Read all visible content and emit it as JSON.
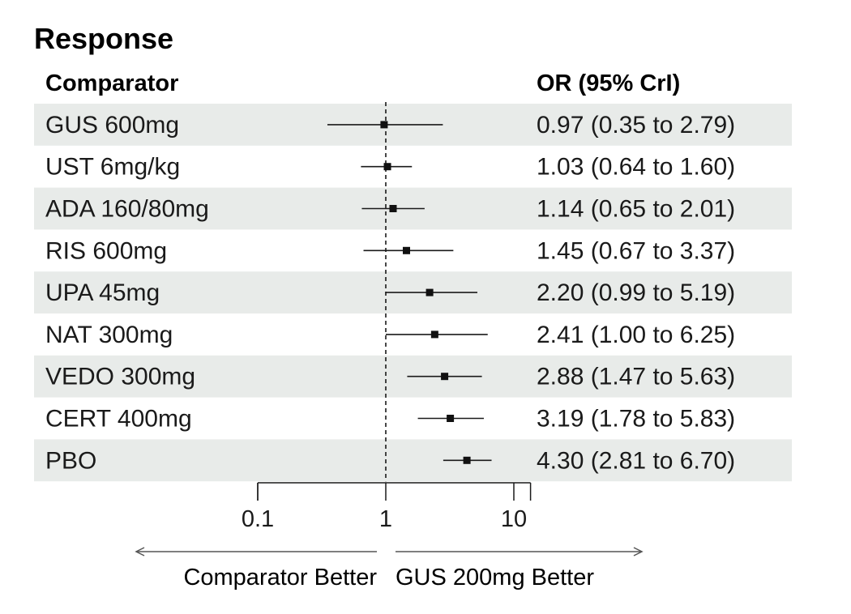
{
  "chart_data": {
    "type": "forest",
    "title": "Response",
    "column_headers": {
      "label": "Comparator",
      "estimate": "OR (95% CrI)"
    },
    "x_scale": "log",
    "xlim": [
      0.1,
      13.5
    ],
    "reference_line": 1,
    "ticks": [
      0.1,
      1,
      10
    ],
    "tick_labels": [
      "0.1",
      "1",
      "10"
    ],
    "direction_labels": {
      "left": "Comparator Better",
      "right": "GUS 200mg Better"
    },
    "rows": [
      {
        "label": "GUS 600mg",
        "or": 0.97,
        "lower": 0.35,
        "upper": 2.79,
        "ci_text": "0.97 (0.35 to 2.79)"
      },
      {
        "label": "UST 6mg/kg",
        "or": 1.03,
        "lower": 0.64,
        "upper": 1.6,
        "ci_text": "1.03 (0.64 to 1.60)"
      },
      {
        "label": "ADA 160/80mg",
        "or": 1.14,
        "lower": 0.65,
        "upper": 2.01,
        "ci_text": "1.14 (0.65 to 2.01)"
      },
      {
        "label": "RIS 600mg",
        "or": 1.45,
        "lower": 0.67,
        "upper": 3.37,
        "ci_text": "1.45 (0.67 to 3.37)"
      },
      {
        "label": "UPA 45mg",
        "or": 2.2,
        "lower": 0.99,
        "upper": 5.19,
        "ci_text": "2.20 (0.99 to 5.19)"
      },
      {
        "label": "NAT 300mg",
        "or": 2.41,
        "lower": 1.0,
        "upper": 6.25,
        "ci_text": "2.41 (1.00 to 6.25)"
      },
      {
        "label": "VEDO 300mg",
        "or": 2.88,
        "lower": 1.47,
        "upper": 5.63,
        "ci_text": "2.88 (1.47 to 5.63)"
      },
      {
        "label": "CERT 400mg",
        "or": 3.19,
        "lower": 1.78,
        "upper": 5.83,
        "ci_text": "3.19 (1.78 to 5.83)"
      },
      {
        "label": "PBO",
        "or": 4.3,
        "lower": 2.81,
        "upper": 6.7,
        "ci_text": "4.30 (2.81 to 6.70)"
      }
    ],
    "colors": {
      "band": "#e8ebe9",
      "ink": "#1a1a1a",
      "axis_gray": "#555555"
    }
  }
}
